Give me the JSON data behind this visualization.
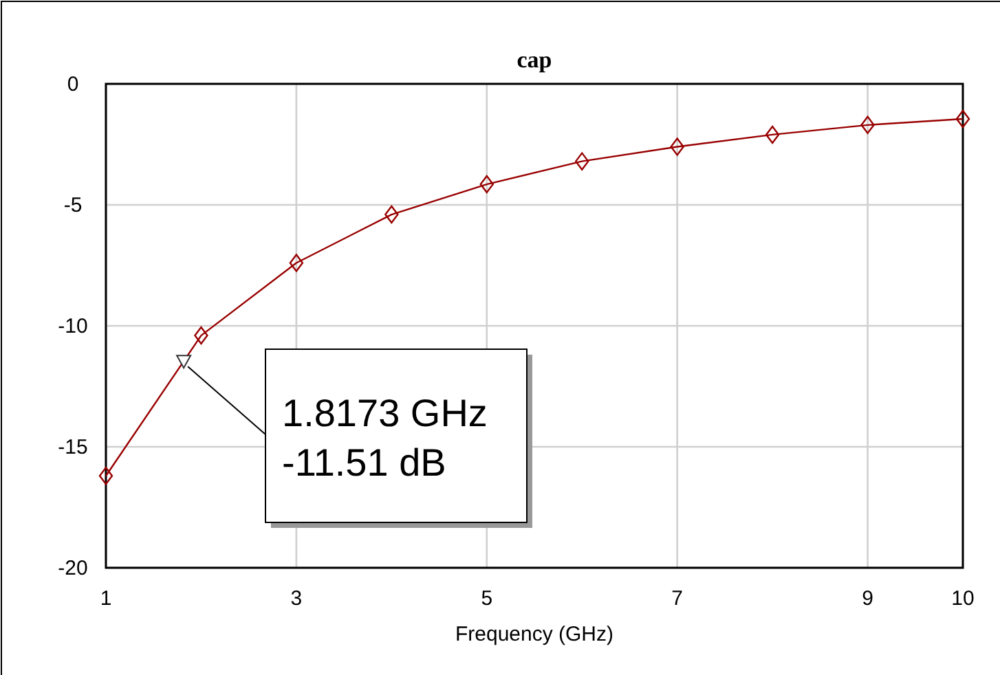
{
  "chart_data": {
    "type": "line",
    "title": "cap",
    "xlabel": "Frequency (GHz)",
    "x": [
      1,
      2,
      3,
      4,
      5,
      6,
      7,
      8,
      9,
      10
    ],
    "series": [
      {
        "color": "#990000",
        "values": [
          -16.2,
          -10.4,
          -7.4,
          -5.4,
          -4.15,
          -3.2,
          -2.6,
          -2.1,
          -1.7,
          -1.45
        ]
      }
    ],
    "xlim": [
      1,
      10
    ],
    "xticks": [
      1,
      3,
      5,
      7,
      9,
      10
    ],
    "ylim": [
      -20,
      0
    ],
    "yticks": [
      -20,
      -15,
      -10,
      -5,
      0
    ],
    "grid": true,
    "marker": "diamond",
    "line_style": "solid",
    "annotations": [
      {
        "text": "1.8173 GHz\n-11.51 dB",
        "x": 1.8173,
        "y": -11.51
      }
    ]
  }
}
